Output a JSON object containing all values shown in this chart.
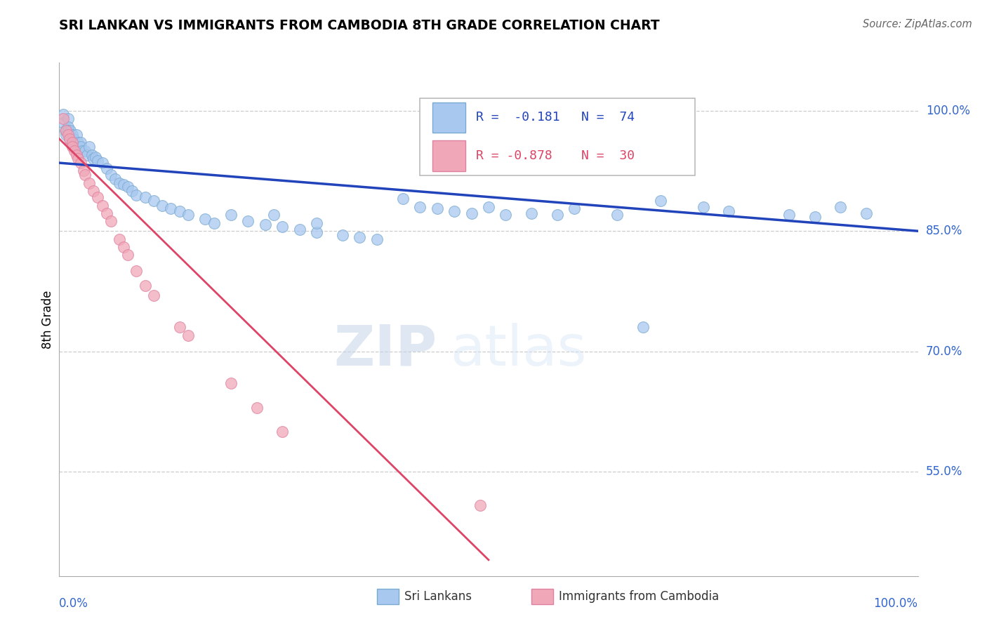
{
  "title": "SRI LANKAN VS IMMIGRANTS FROM CAMBODIA 8TH GRADE CORRELATION CHART",
  "source": "Source: ZipAtlas.com",
  "ylabel": "8th Grade",
  "y_tick_labels": [
    "100.0%",
    "85.0%",
    "70.0%",
    "55.0%"
  ],
  "y_tick_values": [
    1.0,
    0.85,
    0.7,
    0.55
  ],
  "legend_blue_r": "R =  -0.181",
  "legend_blue_n": "N =  74",
  "legend_pink_r": "R = -0.878",
  "legend_pink_n": "N =  30",
  "blue_color": "#A8C8F0",
  "pink_color": "#F0A8B8",
  "blue_line_color": "#2244BB",
  "pink_line_color": "#DD4466",
  "watermark_zip": "ZIP",
  "watermark_atlas": "atlas",
  "blue_line_x": [
    0.0,
    1.0
  ],
  "blue_line_y": [
    0.935,
    0.85
  ],
  "pink_line_x": [
    0.0,
    0.5
  ],
  "pink_line_y": [
    0.965,
    0.44
  ],
  "xlim": [
    0.0,
    1.0
  ],
  "ylim": [
    0.42,
    1.06
  ],
  "blue_x": [
    0.005,
    0.005,
    0.007,
    0.008,
    0.01,
    0.01,
    0.01,
    0.012,
    0.012,
    0.013,
    0.015,
    0.015,
    0.017,
    0.018,
    0.02,
    0.022,
    0.023,
    0.025,
    0.025,
    0.027,
    0.03,
    0.032,
    0.035,
    0.038,
    0.04,
    0.042,
    0.045,
    0.05,
    0.055,
    0.06,
    0.065,
    0.07,
    0.075,
    0.08,
    0.085,
    0.09,
    0.1,
    0.11,
    0.12,
    0.13,
    0.14,
    0.15,
    0.17,
    0.18,
    0.2,
    0.22,
    0.24,
    0.26,
    0.28,
    0.3,
    0.33,
    0.35,
    0.37,
    0.4,
    0.42,
    0.44,
    0.46,
    0.48,
    0.5,
    0.52,
    0.55,
    0.6,
    0.65,
    0.7,
    0.75,
    0.78,
    0.85,
    0.88,
    0.91,
    0.94,
    0.25,
    0.3,
    0.58,
    0.68
  ],
  "blue_y": [
    0.995,
    0.985,
    0.975,
    0.97,
    0.99,
    0.98,
    0.975,
    0.97,
    0.965,
    0.975,
    0.97,
    0.96,
    0.965,
    0.958,
    0.97,
    0.96,
    0.955,
    0.96,
    0.955,
    0.95,
    0.95,
    0.945,
    0.955,
    0.945,
    0.94,
    0.942,
    0.938,
    0.935,
    0.928,
    0.92,
    0.915,
    0.91,
    0.908,
    0.905,
    0.9,
    0.895,
    0.892,
    0.888,
    0.882,
    0.878,
    0.875,
    0.87,
    0.865,
    0.86,
    0.87,
    0.862,
    0.858,
    0.855,
    0.852,
    0.848,
    0.845,
    0.842,
    0.84,
    0.89,
    0.88,
    0.878,
    0.875,
    0.872,
    0.88,
    0.87,
    0.872,
    0.878,
    0.87,
    0.888,
    0.88,
    0.875,
    0.87,
    0.868,
    0.88,
    0.872,
    0.87,
    0.86,
    0.87,
    0.73
  ],
  "pink_x": [
    0.005,
    0.008,
    0.01,
    0.012,
    0.015,
    0.015,
    0.018,
    0.02,
    0.022,
    0.025,
    0.028,
    0.03,
    0.035,
    0.04,
    0.045,
    0.05,
    0.055,
    0.06,
    0.07,
    0.075,
    0.08,
    0.09,
    0.1,
    0.11,
    0.14,
    0.15,
    0.2,
    0.23,
    0.26,
    0.49
  ],
  "pink_y": [
    0.99,
    0.975,
    0.97,
    0.965,
    0.96,
    0.955,
    0.95,
    0.945,
    0.94,
    0.935,
    0.925,
    0.92,
    0.91,
    0.9,
    0.892,
    0.882,
    0.872,
    0.862,
    0.84,
    0.83,
    0.82,
    0.8,
    0.782,
    0.77,
    0.73,
    0.72,
    0.66,
    0.63,
    0.6,
    0.508
  ]
}
